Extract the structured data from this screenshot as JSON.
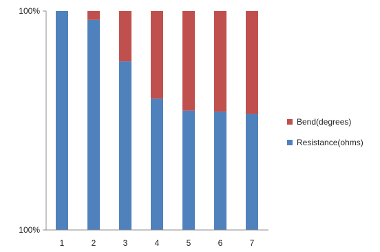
{
  "chart_data": {
    "type": "bar",
    "stacked": true,
    "percent": true,
    "categories": [
      "1",
      "2",
      "3",
      "4",
      "5",
      "6",
      "7"
    ],
    "series": [
      {
        "name": "Resistance(ohms)",
        "color": "#4f81bd",
        "values": [
          100,
          96,
          77,
          60,
          54.5,
          54,
          53
        ]
      },
      {
        "name": "Bend(degrees)",
        "color": "#c0504d",
        "values": [
          0,
          4,
          23,
          40,
          45.5,
          46,
          47
        ]
      }
    ],
    "y_tick_labels": [
      "100%",
      "100%"
    ],
    "legend_position": "right",
    "grid": false
  }
}
